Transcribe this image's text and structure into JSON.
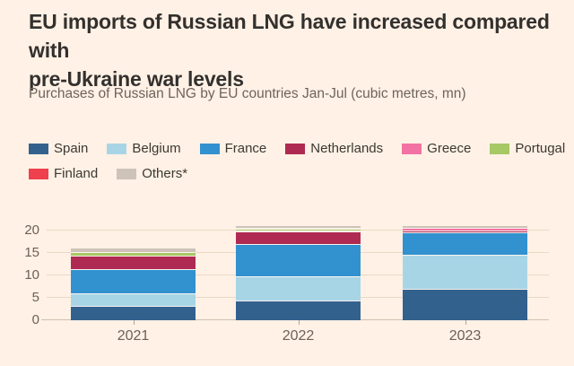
{
  "title": {
    "line1": "EU imports of Russian LNG have increased compared with",
    "line2": "pre-Ukraine war levels",
    "full": "EU imports of Russian LNG have increased compared with pre-Ukraine war levels"
  },
  "subtitle": "Purchases of Russian LNG by EU countries Jan-Jul (cubic metres, mn)",
  "legend": {
    "rows": [
      [
        "Spain",
        "Belgium",
        "France",
        "Netherlands",
        "Greece",
        "Portugal"
      ],
      [
        "Finland",
        "Others*"
      ]
    ]
  },
  "chart_data": {
    "type": "bar",
    "stacked": true,
    "title": "Purchases of Russian LNG by EU countries Jan-Jul (cubic metres, mn)",
    "categories": [
      "2021",
      "2022",
      "2023"
    ],
    "series": [
      {
        "name": "Spain",
        "color": "#33618e",
        "values": [
          3.3,
          4.5,
          7.0
        ]
      },
      {
        "name": "Belgium",
        "color": "#a8d5e6",
        "values": [
          2.8,
          5.3,
          7.7
        ]
      },
      {
        "name": "France",
        "color": "#3291cf",
        "values": [
          5.4,
          7.3,
          4.9
        ]
      },
      {
        "name": "Netherlands",
        "color": "#af2a53",
        "values": [
          3.0,
          2.7,
          0.4
        ]
      },
      {
        "name": "Greece",
        "color": "#f272a3",
        "values": [
          0,
          0.3,
          0.6
        ]
      },
      {
        "name": "Portugal",
        "color": "#a6c865",
        "values": [
          0.8,
          0.3,
          0
        ]
      },
      {
        "name": "Finland",
        "color": "#ef404e",
        "values": [
          0,
          0.2,
          0
        ]
      },
      {
        "name": "Others*",
        "color": "#cdc3b8",
        "values": [
          0.7,
          0.5,
          0.4
        ]
      }
    ],
    "totals": [
      16.0,
      21.1,
      21.0
    ],
    "xlabel": "",
    "ylabel": "",
    "ylim": [
      0,
      21.5
    ],
    "yticks": [
      0,
      5,
      10,
      15,
      20
    ],
    "grid": true,
    "legend_position": "top"
  },
  "style": {
    "background": "#fff1e5",
    "title_color": "#33302e",
    "subtitle_color": "#6e635c",
    "axis_label_color": "#6b6157",
    "gridline_color": "#e9dac7"
  }
}
